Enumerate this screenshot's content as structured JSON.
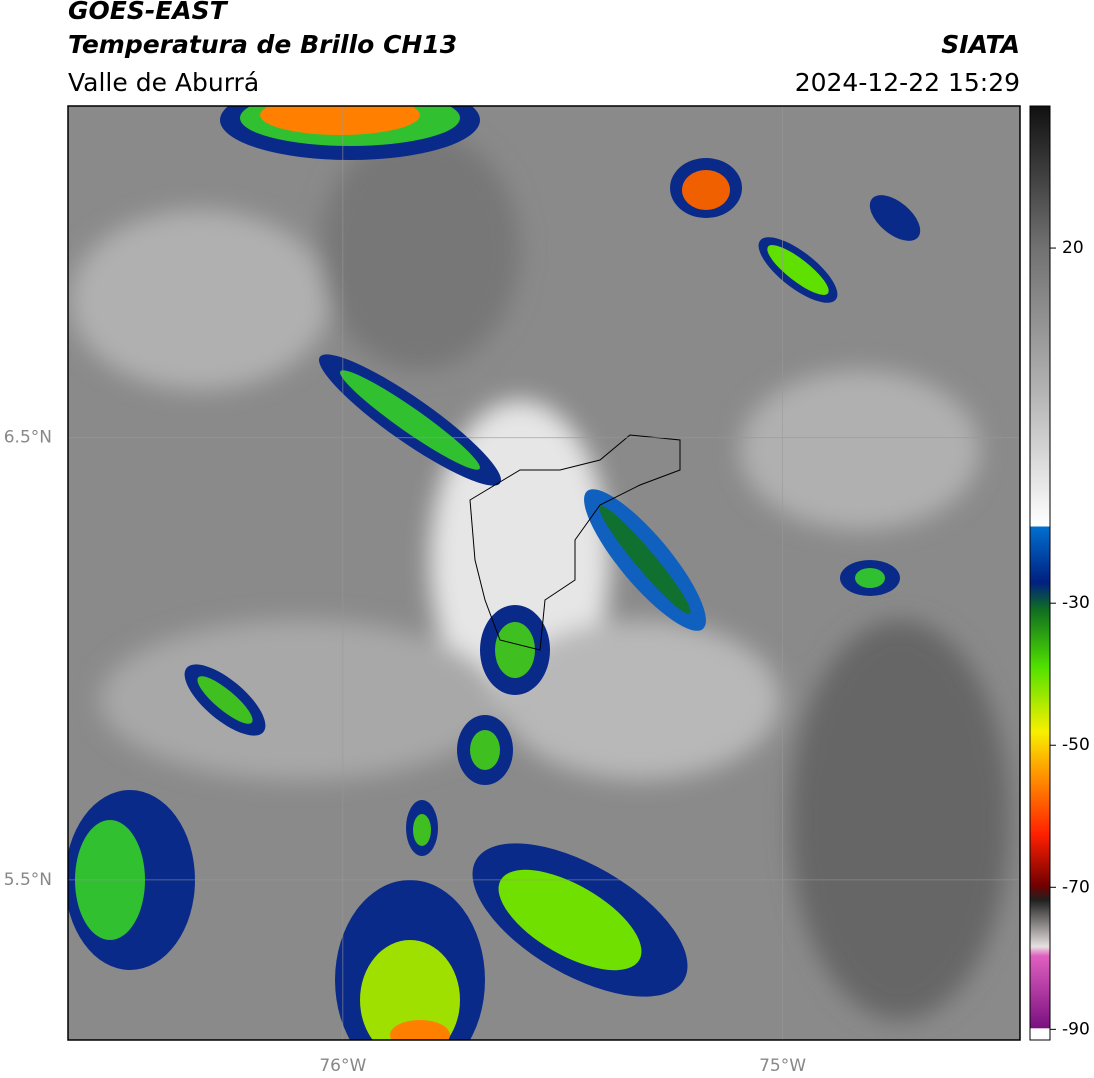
{
  "header": {
    "title": "GOES-EAST",
    "subtitle": "Temperatura de Brillo CH13",
    "region": "Valle de Aburrá",
    "source": "SIATA",
    "datetime": "2024-12-22 15:29"
  },
  "map": {
    "xlim": [
      -76.625,
      -74.46
    ],
    "ylim": [
      5.138,
      7.25
    ],
    "xticks": [
      {
        "value": -76,
        "label": "76°W"
      },
      {
        "value": -75,
        "label": "75°W"
      }
    ],
    "yticks": [
      {
        "value": 6.5,
        "label": "6.5°N"
      },
      {
        "value": 5.5,
        "label": "5.5°N"
      }
    ]
  },
  "colorbar": {
    "lim": [
      -91.5,
      40
    ],
    "ticks": [
      20,
      -30,
      -50,
      -70,
      -90
    ]
  }
}
